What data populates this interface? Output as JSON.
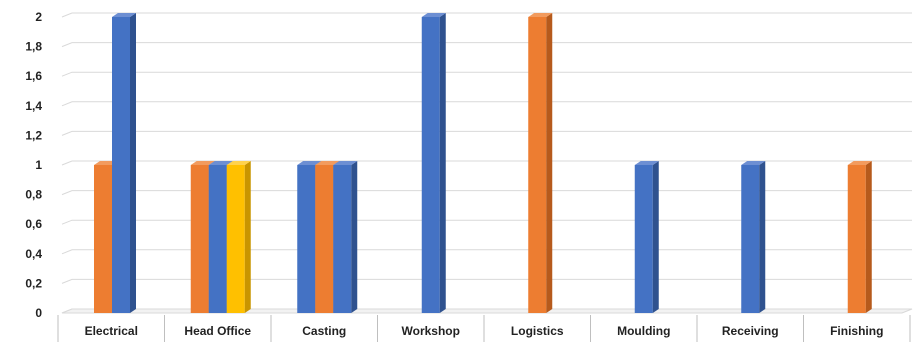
{
  "chart_data": {
    "type": "bar",
    "categories": [
      "Electrical",
      "Head Office",
      "Casting",
      "Workshop",
      "Logistics",
      "Moulding",
      "Receiving",
      "Finishing"
    ],
    "ylim": [
      0,
      2
    ],
    "yticks": [
      "0",
      "0,2",
      "0,4",
      "0,6",
      "0,8",
      "1",
      "1,2",
      "1,4",
      "1,6",
      "1,8",
      "2"
    ],
    "grid": true,
    "legend": "none",
    "style": "3d-clustered-column",
    "bars": [
      {
        "category": "Electrical",
        "values": [
          {
            "v": 1,
            "c": "orange"
          },
          {
            "v": 2,
            "c": "blue"
          }
        ]
      },
      {
        "category": "Head Office",
        "values": [
          {
            "v": 1,
            "c": "orange"
          },
          {
            "v": 1,
            "c": "blue"
          },
          {
            "v": 1,
            "c": "yellow"
          }
        ]
      },
      {
        "category": "Casting",
        "values": [
          {
            "v": 1,
            "c": "blue"
          },
          {
            "v": 1,
            "c": "orange"
          },
          {
            "v": 1,
            "c": "blue"
          }
        ]
      },
      {
        "category": "Workshop",
        "values": [
          {
            "v": 2,
            "c": "blue"
          }
        ]
      },
      {
        "category": "Logistics",
        "values": [
          {
            "v": 2,
            "c": "orange"
          }
        ]
      },
      {
        "category": "Moulding",
        "values": [
          {
            "v": 1,
            "c": "blue"
          }
        ]
      },
      {
        "category": "Receiving",
        "values": [
          {
            "v": 1,
            "c": "blue"
          }
        ]
      },
      {
        "category": "Finishing",
        "values": [
          {
            "v": 1,
            "c": "orange"
          }
        ]
      }
    ],
    "colors": {
      "blue": {
        "front": "#4472C4",
        "side": "#2F528F",
        "top": "#6D8FD3"
      },
      "orange": {
        "front": "#ED7D31",
        "side": "#B65A1C",
        "top": "#F29B5E"
      },
      "yellow": {
        "front": "#FFC000",
        "side": "#C99500",
        "top": "#FFD24D"
      }
    }
  }
}
